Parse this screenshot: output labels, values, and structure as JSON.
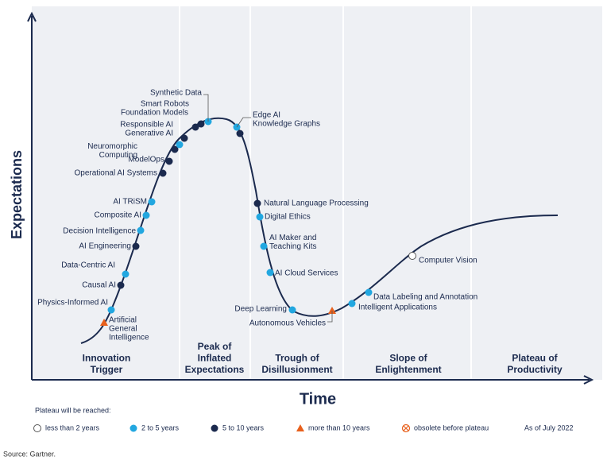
{
  "axes": {
    "y": "Expectations",
    "x": "Time"
  },
  "phases": [
    [
      "Innovation",
      "Trigger"
    ],
    [
      "Peak of",
      "Inflated",
      "Expectations"
    ],
    [
      "Trough of",
      "Disillusionment"
    ],
    [
      "Slope of",
      "Enlightenment"
    ],
    [
      "Plateau of",
      "Productivity"
    ]
  ],
  "points": [
    {
      "label": [
        "Artificial",
        "General",
        "Intelligence"
      ],
      "legend": 3
    },
    {
      "label": [
        "Physics-Informed AI"
      ],
      "legend": 1
    },
    {
      "label": [
        "Causal AI"
      ],
      "legend": 2
    },
    {
      "label": [
        "Data-Centric AI"
      ],
      "legend": 1
    },
    {
      "label": [
        "AI Engineering"
      ],
      "legend": 2
    },
    {
      "label": [
        "Decision Intelligence"
      ],
      "legend": 1
    },
    {
      "label": [
        "Composite AI"
      ],
      "legend": 1
    },
    {
      "label": [
        "AI TRiSM"
      ],
      "legend": 1
    },
    {
      "label": [
        "Operational AI Systems"
      ],
      "legend": 2
    },
    {
      "label": [
        "ModelOps"
      ],
      "legend": 2
    },
    {
      "label": [
        "Neuromorphic",
        "Computing"
      ],
      "legend": 2
    },
    {
      "label": [
        "Responsible AI"
      ],
      "legend": 1
    },
    {
      "label": [
        "Generative AI"
      ],
      "legend": 2
    },
    {
      "label": [
        "Foundation Models"
      ],
      "legend": 2
    },
    {
      "label": [
        "Smart Robots"
      ],
      "legend": 2
    },
    {
      "label": [
        "Synthetic Data"
      ],
      "legend": 1
    },
    {
      "label": [
        "Edge AI"
      ],
      "legend": 1
    },
    {
      "label": [
        "Knowledge Graphs"
      ],
      "legend": 2
    },
    {
      "label": [
        "Natural Language Processing"
      ],
      "legend": 2
    },
    {
      "label": [
        "Digital Ethics"
      ],
      "legend": 1
    },
    {
      "label": [
        "AI Maker and",
        "Teaching Kits"
      ],
      "legend": 1
    },
    {
      "label": [
        "AI Cloud Services"
      ],
      "legend": 1
    },
    {
      "label": [
        "Deep Learning"
      ],
      "legend": 1
    },
    {
      "label": [
        "Autonomous Vehicles"
      ],
      "legend": 3
    },
    {
      "label": [
        "Intelligent Applications"
      ],
      "legend": 1
    },
    {
      "label": [
        "Data Labeling and Annotation"
      ],
      "legend": 1
    },
    {
      "label": [
        "Computer Vision"
      ],
      "legend": 0
    }
  ],
  "legend": {
    "title": "Plateau will be reached:",
    "items": [
      {
        "label": "less than 2 years",
        "symbol": "open-circle"
      },
      {
        "label": "2 to 5 years",
        "symbol": "light-circle"
      },
      {
        "label": "5 to 10 years",
        "symbol": "dark-circle"
      },
      {
        "label": "more than 10 years",
        "symbol": "triangle"
      },
      {
        "label": "obsolete before plateau",
        "symbol": "crossed-circle"
      }
    ]
  },
  "as_of": "As of July 2022",
  "source": "Source: Gartner."
}
